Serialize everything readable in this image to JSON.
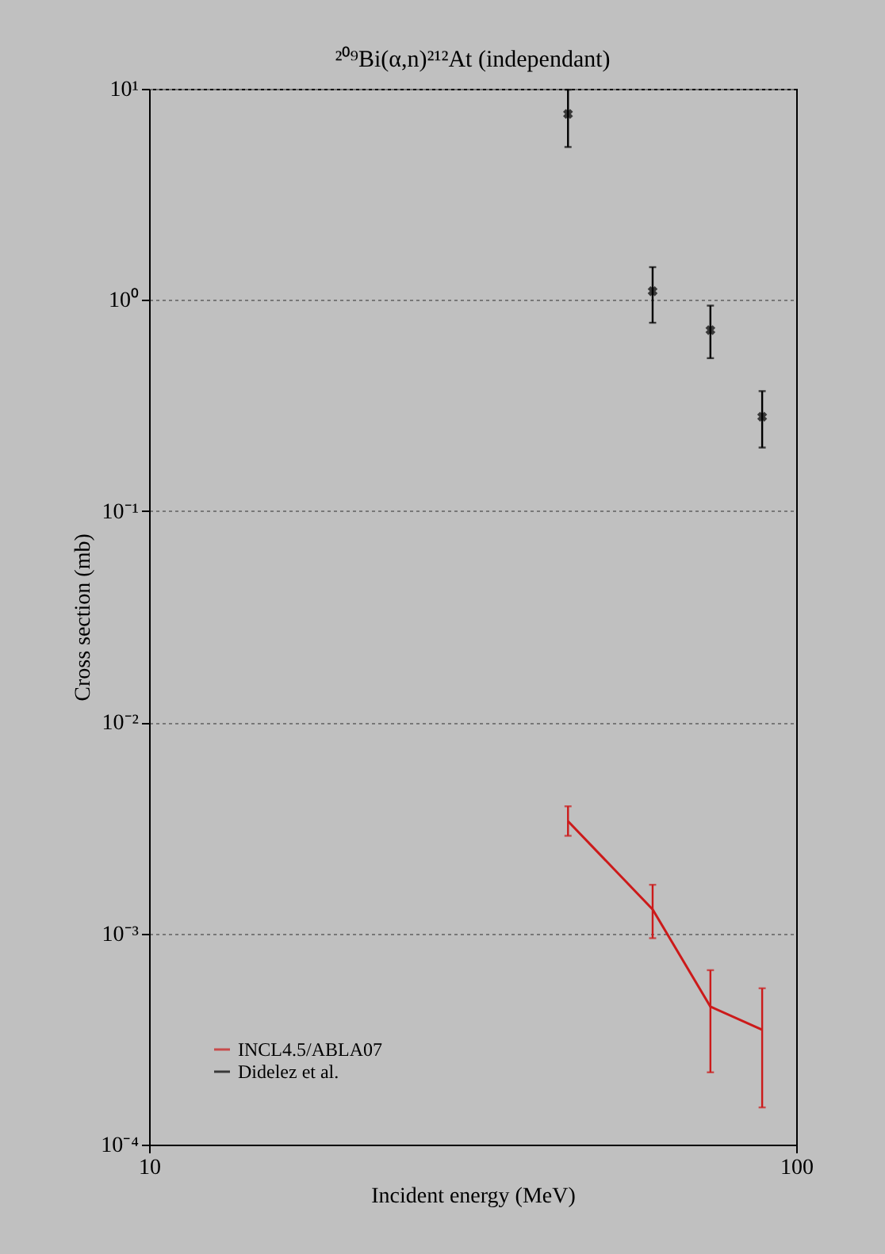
{
  "chart_data": {
    "type": "line",
    "title": "²⁰⁹Bi(α,n)²¹²At (independant)",
    "xlabel": "Incident energy (MeV)",
    "ylabel": "Cross section (mb)",
    "log": "xy",
    "grid": "y",
    "legend": "bottom left",
    "xlim": [
      10,
      100
    ],
    "xticks": [
      {
        "value": 10,
        "label": "10"
      },
      {
        "value": 100,
        "label": "100"
      }
    ],
    "ylim": [
      0.0001,
      10
    ],
    "yticks": [
      {
        "value": 0.0001,
        "label": "10⁻⁴"
      },
      {
        "value": 0.001,
        "label": "10⁻³"
      },
      {
        "value": 0.01,
        "label": "10⁻²"
      },
      {
        "value": 0.1,
        "label": "10⁻¹"
      },
      {
        "value": 1,
        "label": "10⁰"
      },
      {
        "value": 10,
        "label": "10¹"
      }
    ],
    "series": [
      {
        "name": "INCL4.5/ABLA07",
        "color": "#cc1a1a",
        "marker": "none",
        "x": [
          44.4,
          60,
          73.7,
          88.6
        ],
        "values": [
          0.0034,
          0.0013,
          0.00045,
          0.00035
        ],
        "errors": [
          [
            0.0029,
            0.004
          ],
          [
            0.00095,
            0.0017
          ],
          [
            0.00022,
            0.00067
          ],
          [
            0.00015,
            0.00055
          ]
        ]
      },
      {
        "name": "Didelez et al.",
        "type": "scatter",
        "color": "#000000",
        "marker": "cross",
        "x": [
          44.4,
          60,
          73.7,
          88.6
        ],
        "values": [
          7.6,
          1.1,
          0.72,
          0.28
        ],
        "errors": [
          [
            5.3,
            9.9
          ],
          [
            0.78,
            1.43
          ],
          [
            0.53,
            0.94
          ],
          [
            0.2,
            0.37
          ]
        ]
      }
    ]
  }
}
